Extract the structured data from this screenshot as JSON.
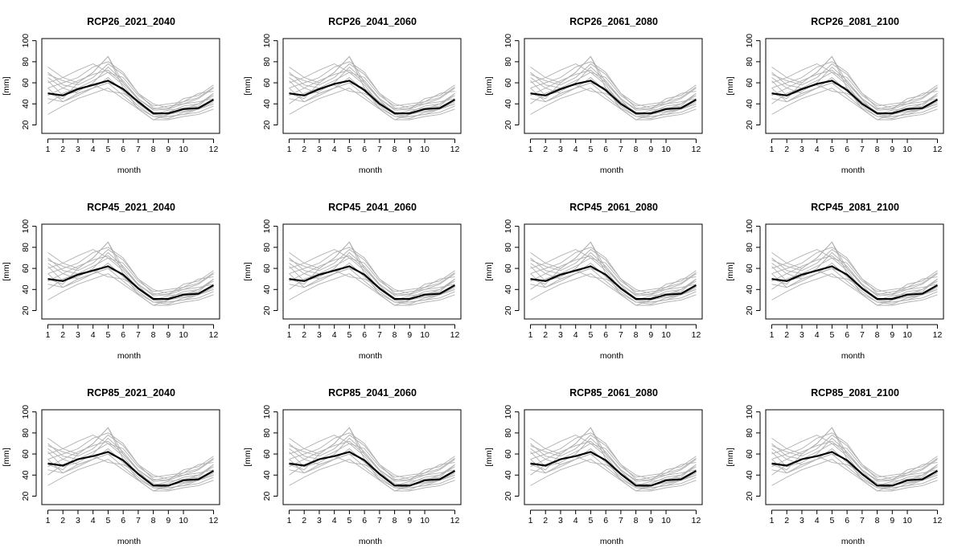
{
  "chart_data": [
    {
      "type": "line",
      "title": "RCP26_2021_2040",
      "xlabel": "month",
      "ylabel": "[mm]",
      "x": [
        1,
        2,
        3,
        4,
        5,
        6,
        7,
        8,
        9,
        10,
        11,
        12
      ],
      "xticks": [
        1,
        2,
        3,
        4,
        5,
        6,
        7,
        8,
        9,
        10,
        12
      ],
      "yticks": [
        20,
        40,
        60,
        80,
        100
      ],
      "ylim": [
        12,
        102
      ],
      "xlim": [
        0.6,
        12.4
      ],
      "mean": [
        50,
        48,
        54,
        58,
        62,
        54,
        42,
        31,
        31,
        35,
        36,
        44
      ]
    },
    {
      "type": "line",
      "title": "RCP26_2041_2060",
      "xlabel": "month",
      "ylabel": "[mm]",
      "x": [
        1,
        2,
        3,
        4,
        5,
        6,
        7,
        8,
        9,
        10,
        11,
        12
      ],
      "xticks": [
        1,
        2,
        3,
        4,
        5,
        6,
        7,
        8,
        9,
        10,
        12
      ],
      "yticks": [
        20,
        40,
        60,
        80,
        100
      ],
      "ylim": [
        12,
        102
      ],
      "xlim": [
        0.6,
        12.4
      ],
      "mean": [
        50,
        48,
        54,
        59,
        62,
        53,
        40,
        31,
        31,
        35,
        36,
        44
      ]
    },
    {
      "type": "line",
      "title": "RCP26_2061_2080",
      "xlabel": "month",
      "ylabel": "[mm]",
      "x": [
        1,
        2,
        3,
        4,
        5,
        6,
        7,
        8,
        9,
        10,
        11,
        12
      ],
      "xticks": [
        1,
        2,
        3,
        4,
        5,
        6,
        7,
        8,
        9,
        10,
        12
      ],
      "yticks": [
        20,
        40,
        60,
        80,
        100
      ],
      "ylim": [
        12,
        102
      ],
      "xlim": [
        0.6,
        12.4
      ],
      "mean": [
        50,
        48,
        54,
        59,
        62,
        53,
        40,
        31,
        31,
        35,
        36,
        44
      ]
    },
    {
      "type": "line",
      "title": "RCP26_2081_2100",
      "xlabel": "month",
      "ylabel": "[mm]",
      "x": [
        1,
        2,
        3,
        4,
        5,
        6,
        7,
        8,
        9,
        10,
        11,
        12
      ],
      "xticks": [
        1,
        2,
        3,
        4,
        5,
        6,
        7,
        8,
        9,
        10,
        12
      ],
      "yticks": [
        20,
        40,
        60,
        80,
        100
      ],
      "ylim": [
        12,
        102
      ],
      "xlim": [
        0.6,
        12.4
      ],
      "mean": [
        50,
        48,
        54,
        59,
        62,
        53,
        40,
        31,
        31,
        35,
        36,
        44
      ]
    },
    {
      "type": "line",
      "title": "RCP45_2021_2040",
      "xlabel": "month",
      "ylabel": "[mm]",
      "x": [
        1,
        2,
        3,
        4,
        5,
        6,
        7,
        8,
        9,
        10,
        11,
        12
      ],
      "xticks": [
        1,
        2,
        3,
        4,
        5,
        6,
        7,
        8,
        9,
        10,
        12
      ],
      "yticks": [
        20,
        40,
        60,
        80,
        100
      ],
      "ylim": [
        12,
        102
      ],
      "xlim": [
        0.6,
        12.4
      ],
      "mean": [
        50,
        48,
        54,
        58,
        62,
        54,
        41,
        31,
        31,
        35,
        36,
        44
      ]
    },
    {
      "type": "line",
      "title": "RCP45_2041_2060",
      "xlabel": "month",
      "ylabel": "[mm]",
      "x": [
        1,
        2,
        3,
        4,
        5,
        6,
        7,
        8,
        9,
        10,
        11,
        12
      ],
      "xticks": [
        1,
        2,
        3,
        4,
        5,
        6,
        7,
        8,
        9,
        10,
        12
      ],
      "yticks": [
        20,
        40,
        60,
        80,
        100
      ],
      "ylim": [
        12,
        102
      ],
      "xlim": [
        0.6,
        12.4
      ],
      "mean": [
        50,
        48,
        54,
        58,
        62,
        54,
        41,
        31,
        31,
        35,
        36,
        44
      ]
    },
    {
      "type": "line",
      "title": "RCP45_2061_2080",
      "xlabel": "month",
      "ylabel": "[mm]",
      "x": [
        1,
        2,
        3,
        4,
        5,
        6,
        7,
        8,
        9,
        10,
        11,
        12
      ],
      "xticks": [
        1,
        2,
        3,
        4,
        5,
        6,
        7,
        8,
        9,
        10,
        12
      ],
      "yticks": [
        20,
        40,
        60,
        80,
        100
      ],
      "ylim": [
        12,
        102
      ],
      "xlim": [
        0.6,
        12.4
      ],
      "mean": [
        50,
        48,
        54,
        58,
        62,
        54,
        41,
        31,
        31,
        35,
        36,
        44
      ]
    },
    {
      "type": "line",
      "title": "RCP45_2081_2100",
      "xlabel": "month",
      "ylabel": "[mm]",
      "x": [
        1,
        2,
        3,
        4,
        5,
        6,
        7,
        8,
        9,
        10,
        11,
        12
      ],
      "xticks": [
        1,
        2,
        3,
        4,
        5,
        6,
        7,
        8,
        9,
        10,
        12
      ],
      "yticks": [
        20,
        40,
        60,
        80,
        100
      ],
      "ylim": [
        12,
        102
      ],
      "xlim": [
        0.6,
        12.4
      ],
      "mean": [
        50,
        48,
        54,
        58,
        62,
        54,
        41,
        31,
        31,
        35,
        36,
        44
      ]
    },
    {
      "type": "line",
      "title": "RCP85_2021_2040",
      "xlabel": "month",
      "ylabel": "[mm]",
      "x": [
        1,
        2,
        3,
        4,
        5,
        6,
        7,
        8,
        9,
        10,
        11,
        12
      ],
      "xticks": [
        1,
        2,
        3,
        4,
        5,
        6,
        7,
        8,
        9,
        10,
        12
      ],
      "yticks": [
        20,
        40,
        60,
        80,
        100
      ],
      "ylim": [
        12,
        102
      ],
      "xlim": [
        0.6,
        12.4
      ],
      "mean": [
        51,
        49,
        55,
        58,
        62,
        54,
        41,
        30,
        30,
        35,
        36,
        44
      ]
    },
    {
      "type": "line",
      "title": "RCP85_2041_2060",
      "xlabel": "month",
      "ylabel": "[mm]",
      "x": [
        1,
        2,
        3,
        4,
        5,
        6,
        7,
        8,
        9,
        10,
        11,
        12
      ],
      "xticks": [
        1,
        2,
        3,
        4,
        5,
        6,
        7,
        8,
        9,
        10,
        12
      ],
      "yticks": [
        20,
        40,
        60,
        80,
        100
      ],
      "ylim": [
        12,
        102
      ],
      "xlim": [
        0.6,
        12.4
      ],
      "mean": [
        51,
        49,
        55,
        58,
        62,
        54,
        41,
        30,
        30,
        35,
        36,
        44
      ]
    },
    {
      "type": "line",
      "title": "RCP85_2061_2080",
      "xlabel": "month",
      "ylabel": "[mm]",
      "x": [
        1,
        2,
        3,
        4,
        5,
        6,
        7,
        8,
        9,
        10,
        11,
        12
      ],
      "xticks": [
        1,
        2,
        3,
        4,
        5,
        6,
        7,
        8,
        9,
        10,
        12
      ],
      "yticks": [
        20,
        40,
        60,
        80,
        100
      ],
      "ylim": [
        12,
        102
      ],
      "xlim": [
        0.6,
        12.4
      ],
      "mean": [
        51,
        49,
        55,
        58,
        62,
        54,
        41,
        30,
        30,
        35,
        36,
        44
      ]
    },
    {
      "type": "line",
      "title": "RCP85_2081_2100",
      "xlabel": "month",
      "ylabel": "[mm]",
      "x": [
        1,
        2,
        3,
        4,
        5,
        6,
        7,
        8,
        9,
        10,
        11,
        12
      ],
      "xticks": [
        1,
        2,
        3,
        4,
        5,
        6,
        7,
        8,
        9,
        10,
        12
      ],
      "yticks": [
        20,
        40,
        60,
        80,
        100
      ],
      "ylim": [
        12,
        102
      ],
      "xlim": [
        0.6,
        12.4
      ],
      "mean": [
        51,
        49,
        55,
        58,
        62,
        54,
        41,
        30,
        30,
        35,
        36,
        44
      ]
    }
  ],
  "ensemble": [
    [
      75,
      65,
      60,
      70,
      85,
      60,
      45,
      35,
      38,
      40,
      45,
      55
    ],
    [
      65,
      55,
      50,
      55,
      60,
      55,
      42,
      30,
      28,
      30,
      35,
      40
    ],
    [
      55,
      60,
      65,
      75,
      80,
      70,
      50,
      36,
      35,
      45,
      48,
      58
    ],
    [
      45,
      42,
      48,
      55,
      65,
      52,
      38,
      28,
      28,
      30,
      32,
      38
    ],
    [
      70,
      58,
      55,
      62,
      70,
      65,
      48,
      38,
      40,
      42,
      50,
      52
    ],
    [
      30,
      38,
      45,
      50,
      55,
      45,
      35,
      25,
      25,
      28,
      30,
      35
    ],
    [
      60,
      65,
      72,
      78,
      70,
      58,
      40,
      30,
      32,
      38,
      40,
      50
    ],
    [
      50,
      45,
      60,
      70,
      85,
      55,
      35,
      25,
      30,
      35,
      40,
      48
    ],
    [
      40,
      50,
      55,
      58,
      52,
      50,
      42,
      32,
      30,
      33,
      35,
      42
    ],
    [
      62,
      48,
      52,
      60,
      75,
      62,
      45,
      34,
      35,
      40,
      42,
      45
    ],
    [
      55,
      42,
      50,
      55,
      60,
      48,
      36,
      28,
      26,
      32,
      35,
      40
    ],
    [
      68,
      62,
      58,
      65,
      78,
      68,
      50,
      40,
      36,
      42,
      46,
      56
    ],
    [
      48,
      55,
      62,
      68,
      72,
      60,
      44,
      30,
      34,
      36,
      38,
      50
    ]
  ]
}
